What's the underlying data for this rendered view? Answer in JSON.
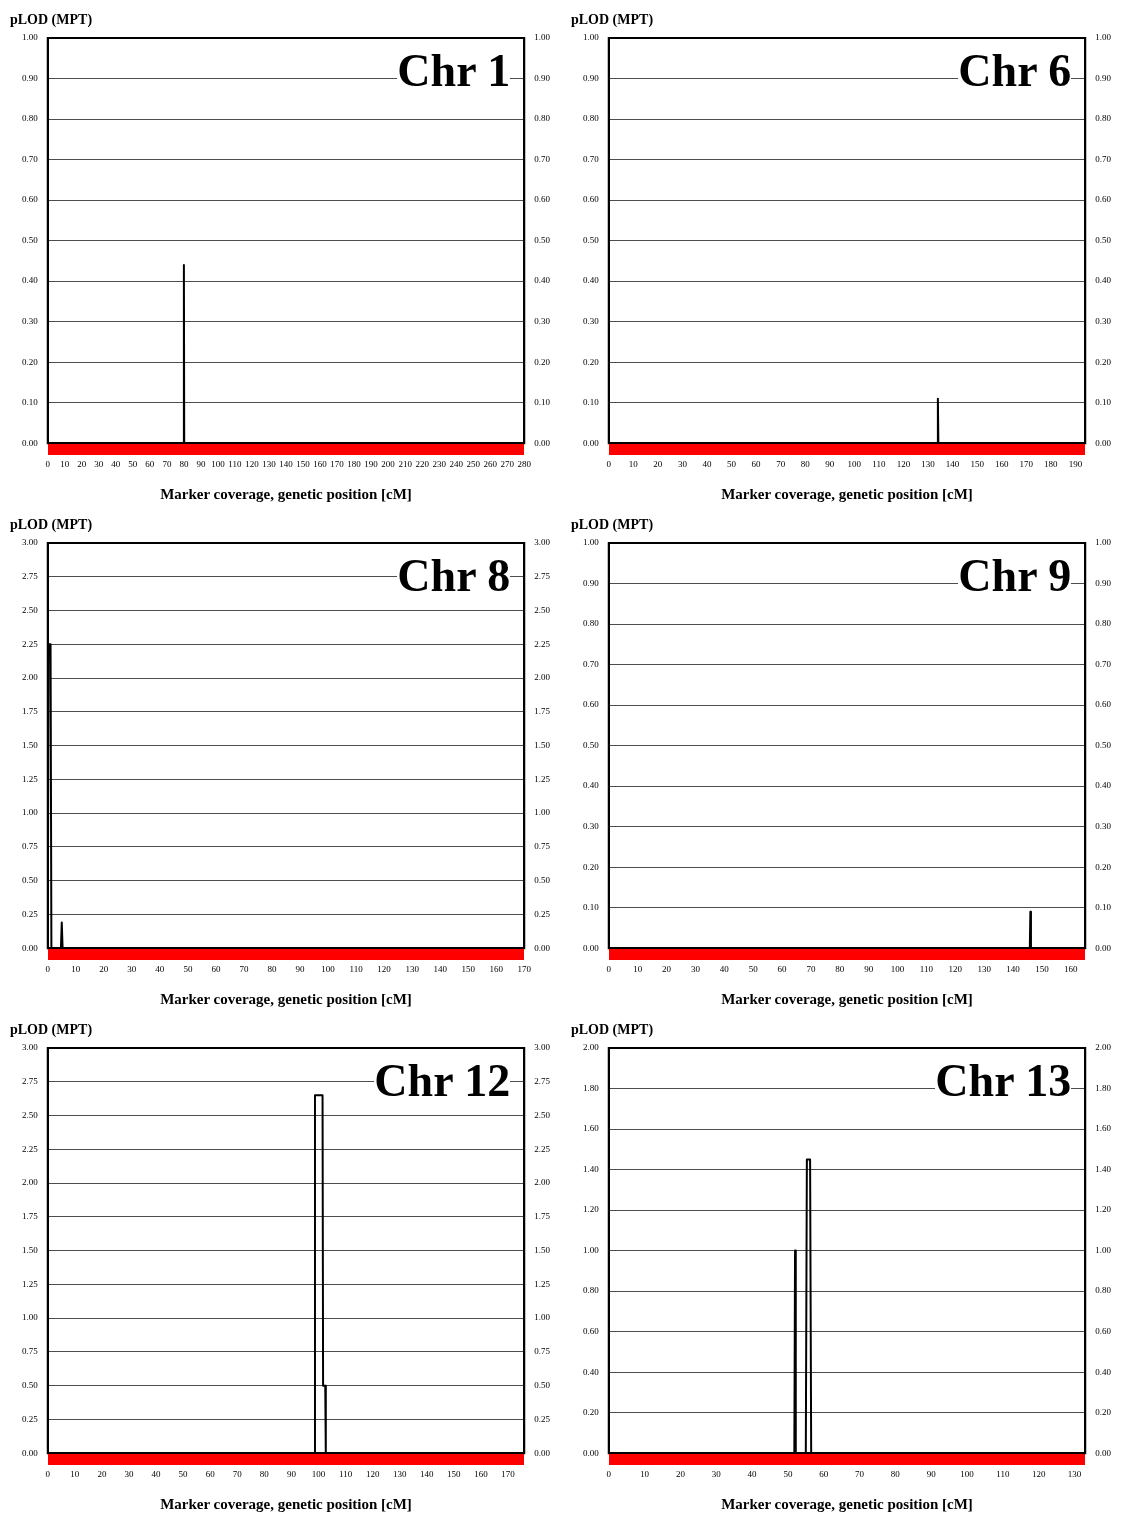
{
  "chart_data": [
    {
      "type": "line",
      "annotations": [
        "Chr 1"
      ],
      "ylabel": "pLOD (MPT)",
      "xlabel": "Marker coverage, genetic position [cM]",
      "grid": "y",
      "marker": "none",
      "x": [
        0,
        79.8,
        80,
        80.2,
        280
      ],
      "series": [
        {
          "color": "#000000",
          "values": [
            0,
            0,
            0.44,
            0,
            0
          ]
        }
      ],
      "xlim": [
        0,
        280
      ],
      "xticks": [
        0,
        10,
        20,
        30,
        40,
        50,
        60,
        70,
        80,
        90,
        100,
        110,
        120,
        130,
        140,
        150,
        160,
        170,
        180,
        190,
        200,
        210,
        220,
        230,
        240,
        250,
        260,
        270,
        280
      ],
      "ylim": [
        0,
        1
      ],
      "yticks": [
        {
          "value": 0,
          "label": "0.00"
        },
        {
          "value": 0.1,
          "label": "0.10"
        },
        {
          "value": 0.2,
          "label": "0.20"
        },
        {
          "value": 0.3,
          "label": "0.30"
        },
        {
          "value": 0.4,
          "label": "0.40"
        },
        {
          "value": 0.5,
          "label": "0.50"
        },
        {
          "value": 0.6,
          "label": "0.60"
        },
        {
          "value": 0.7,
          "label": "0.70"
        },
        {
          "value": 0.8,
          "label": "0.80"
        },
        {
          "value": 0.9,
          "label": "0.90"
        },
        {
          "value": 1,
          "label": "1.00"
        }
      ],
      "y2lim": [
        0,
        1
      ],
      "y2ticks": [
        {
          "value": 0,
          "label": "0.00"
        },
        {
          "value": 0.1,
          "label": "0.10"
        },
        {
          "value": 0.2,
          "label": "0.20"
        },
        {
          "value": 0.3,
          "label": "0.30"
        },
        {
          "value": 0.4,
          "label": "0.40"
        },
        {
          "value": 0.5,
          "label": "0.50"
        },
        {
          "value": 0.6,
          "label": "0.60"
        },
        {
          "value": 0.7,
          "label": "0.70"
        },
        {
          "value": 0.8,
          "label": "0.80"
        },
        {
          "value": 0.9,
          "label": "0.90"
        },
        {
          "value": 1,
          "label": "1.00"
        }
      ]
    },
    {
      "type": "line",
      "annotations": [
        "Chr 6"
      ],
      "ylabel": "pLOD (MPT)",
      "xlabel": "Marker coverage, genetic position [cM]",
      "grid": "y",
      "marker": "none",
      "x": [
        0,
        133.8,
        134,
        134.2,
        194
      ],
      "series": [
        {
          "color": "#000000",
          "values": [
            0,
            0,
            0.11,
            0,
            0
          ]
        }
      ],
      "xlim": [
        0,
        194
      ],
      "xticks": [
        0,
        10,
        20,
        30,
        40,
        50,
        60,
        70,
        80,
        90,
        100,
        110,
        120,
        130,
        140,
        150,
        160,
        170,
        180,
        190
      ],
      "ylim": [
        0,
        1
      ],
      "yticks": [
        {
          "value": 0,
          "label": "0.00"
        },
        {
          "value": 0.1,
          "label": "0.10"
        },
        {
          "value": 0.2,
          "label": "0.20"
        },
        {
          "value": 0.3,
          "label": "0.30"
        },
        {
          "value": 0.4,
          "label": "0.40"
        },
        {
          "value": 0.5,
          "label": "0.50"
        },
        {
          "value": 0.6,
          "label": "0.60"
        },
        {
          "value": 0.7,
          "label": "0.70"
        },
        {
          "value": 0.8,
          "label": "0.80"
        },
        {
          "value": 0.9,
          "label": "0.90"
        },
        {
          "value": 1,
          "label": "1.00"
        }
      ],
      "y2lim": [
        0,
        1
      ],
      "y2ticks": [
        {
          "value": 0,
          "label": "0.00"
        },
        {
          "value": 0.1,
          "label": "0.10"
        },
        {
          "value": 0.2,
          "label": "0.20"
        },
        {
          "value": 0.3,
          "label": "0.30"
        },
        {
          "value": 0.4,
          "label": "0.40"
        },
        {
          "value": 0.5,
          "label": "0.50"
        },
        {
          "value": 0.6,
          "label": "0.60"
        },
        {
          "value": 0.7,
          "label": "0.70"
        },
        {
          "value": 0.8,
          "label": "0.80"
        },
        {
          "value": 0.9,
          "label": "0.90"
        },
        {
          "value": 1,
          "label": "1.00"
        }
      ]
    },
    {
      "type": "line",
      "annotations": [
        "Chr 8"
      ],
      "ylabel": "pLOD (MPT)",
      "xlabel": "Marker coverage, genetic position [cM]",
      "grid": "y",
      "marker": "none",
      "x": [
        0,
        0.3,
        1,
        1.3,
        4.7,
        5,
        5.3,
        170
      ],
      "series": [
        {
          "color": "#000000",
          "values": [
            0,
            2.25,
            2.25,
            0,
            0,
            0.19,
            0,
            0
          ]
        }
      ],
      "xlim": [
        0,
        170
      ],
      "xticks": [
        0,
        10,
        20,
        30,
        40,
        50,
        60,
        70,
        80,
        90,
        100,
        110,
        120,
        130,
        140,
        150,
        160,
        170
      ],
      "ylim": [
        0,
        3
      ],
      "yticks": [
        {
          "value": 0,
          "label": "0.00"
        },
        {
          "value": 0.25,
          "label": "0.25"
        },
        {
          "value": 0.5,
          "label": "0.50"
        },
        {
          "value": 0.75,
          "label": "0.75"
        },
        {
          "value": 1,
          "label": "1.00"
        },
        {
          "value": 1.25,
          "label": "1.25"
        },
        {
          "value": 1.5,
          "label": "1.50"
        },
        {
          "value": 1.75,
          "label": "1.75"
        },
        {
          "value": 2,
          "label": "2.00"
        },
        {
          "value": 2.25,
          "label": "2.25"
        },
        {
          "value": 2.5,
          "label": "2.50"
        },
        {
          "value": 2.75,
          "label": "2.75"
        },
        {
          "value": 3,
          "label": "3.00"
        }
      ],
      "y2lim": [
        0,
        3
      ],
      "y2ticks": [
        {
          "value": 0,
          "label": "0.00"
        },
        {
          "value": 0.25,
          "label": "0.25"
        },
        {
          "value": 0.5,
          "label": "0.50"
        },
        {
          "value": 0.75,
          "label": "0.75"
        },
        {
          "value": 1,
          "label": "1.00"
        },
        {
          "value": 1.25,
          "label": "1.25"
        },
        {
          "value": 1.5,
          "label": "1.50"
        },
        {
          "value": 1.75,
          "label": "1.75"
        },
        {
          "value": 2,
          "label": "2.00"
        },
        {
          "value": 2.25,
          "label": "2.25"
        },
        {
          "value": 2.5,
          "label": "2.50"
        },
        {
          "value": 2.75,
          "label": "2.75"
        },
        {
          "value": 3,
          "label": "3.00"
        }
      ]
    },
    {
      "type": "line",
      "annotations": [
        "Chr 9"
      ],
      "ylabel": "pLOD (MPT)",
      "xlabel": "Marker coverage, genetic position [cM]",
      "grid": "y",
      "marker": "none",
      "x": [
        145.8,
        146,
        146.2
      ],
      "series": [
        {
          "color": "#000000",
          "values": [
            0,
            0.09,
            0
          ]
        }
      ],
      "xlim": [
        0,
        165
      ],
      "xticks": [
        0,
        10,
        20,
        30,
        40,
        50,
        60,
        70,
        80,
        90,
        100,
        110,
        120,
        130,
        140,
        150,
        160
      ],
      "ylim": [
        0,
        1
      ],
      "yticks": [
        {
          "value": 0,
          "label": "0.00"
        },
        {
          "value": 0.1,
          "label": "0.10"
        },
        {
          "value": 0.2,
          "label": "0.20"
        },
        {
          "value": 0.3,
          "label": "0.30"
        },
        {
          "value": 0.4,
          "label": "0.40"
        },
        {
          "value": 0.5,
          "label": "0.50"
        },
        {
          "value": 0.6,
          "label": "0.60"
        },
        {
          "value": 0.7,
          "label": "0.70"
        },
        {
          "value": 0.8,
          "label": "0.80"
        },
        {
          "value": 0.9,
          "label": "0.90"
        },
        {
          "value": 1,
          "label": "1.00"
        }
      ],
      "y2lim": [
        0,
        1
      ],
      "y2ticks": [
        {
          "value": 0,
          "label": "0.00"
        },
        {
          "value": 0.1,
          "label": "0.10"
        },
        {
          "value": 0.2,
          "label": "0.20"
        },
        {
          "value": 0.3,
          "label": "0.30"
        },
        {
          "value": 0.4,
          "label": "0.40"
        },
        {
          "value": 0.5,
          "label": "0.50"
        },
        {
          "value": 0.6,
          "label": "0.60"
        },
        {
          "value": 0.7,
          "label": "0.70"
        },
        {
          "value": 0.8,
          "label": "0.80"
        },
        {
          "value": 0.9,
          "label": "0.90"
        },
        {
          "value": 1,
          "label": "1.00"
        }
      ]
    },
    {
      "type": "line",
      "annotations": [
        "Chr 12"
      ],
      "ylabel": "pLOD (MPT)",
      "xlabel": "Marker coverage, genetic position [cM]",
      "grid": "y",
      "marker": "none",
      "x": [
        0,
        98.5,
        98.7,
        101.5,
        101.7,
        102.5,
        102.7,
        176
      ],
      "series": [
        {
          "color": "#000000",
          "values": [
            0,
            0,
            2.65,
            2.65,
            0.5,
            0.5,
            0,
            0
          ]
        }
      ],
      "xlim": [
        0,
        176
      ],
      "xticks": [
        0,
        10,
        20,
        30,
        40,
        50,
        60,
        70,
        80,
        90,
        100,
        110,
        120,
        130,
        140,
        150,
        160,
        170
      ],
      "ylim": [
        0,
        3
      ],
      "yticks": [
        {
          "value": 0,
          "label": "0.00"
        },
        {
          "value": 0.25,
          "label": "0.25"
        },
        {
          "value": 0.5,
          "label": "0.50"
        },
        {
          "value": 0.75,
          "label": "0.75"
        },
        {
          "value": 1,
          "label": "1.00"
        },
        {
          "value": 1.25,
          "label": "1.25"
        },
        {
          "value": 1.5,
          "label": "1.50"
        },
        {
          "value": 1.75,
          "label": "1.75"
        },
        {
          "value": 2,
          "label": "2.00"
        },
        {
          "value": 2.25,
          "label": "2.25"
        },
        {
          "value": 2.5,
          "label": "2.50"
        },
        {
          "value": 2.75,
          "label": "2.75"
        },
        {
          "value": 3,
          "label": "3.00"
        }
      ],
      "y2lim": [
        0,
        3
      ],
      "y2ticks": [
        {
          "value": 0,
          "label": "0.00"
        },
        {
          "value": 0.25,
          "label": "0.25"
        },
        {
          "value": 0.5,
          "label": "0.50"
        },
        {
          "value": 0.75,
          "label": "0.75"
        },
        {
          "value": 1,
          "label": "1.00"
        },
        {
          "value": 1.25,
          "label": "1.25"
        },
        {
          "value": 1.5,
          "label": "1.50"
        },
        {
          "value": 1.75,
          "label": "1.75"
        },
        {
          "value": 2,
          "label": "2.00"
        },
        {
          "value": 2.25,
          "label": "2.25"
        },
        {
          "value": 2.5,
          "label": "2.50"
        },
        {
          "value": 2.75,
          "label": "2.75"
        },
        {
          "value": 3,
          "label": "3.00"
        }
      ]
    },
    {
      "type": "line",
      "annotations": [
        "Chr 13"
      ],
      "ylabel": "pLOD (MPT)",
      "xlabel": "Marker coverage, genetic position [cM]",
      "grid": "y",
      "marker": "none",
      "x": [
        0,
        51.8,
        52,
        52.2,
        55,
        55.3,
        56.2,
        56.5,
        133
      ],
      "series": [
        {
          "color": "#000000",
          "values": [
            0,
            0,
            1,
            0,
            0,
            1.45,
            1.45,
            0,
            0
          ]
        }
      ],
      "xlim": [
        0,
        133
      ],
      "xticks": [
        0,
        10,
        20,
        30,
        40,
        50,
        60,
        70,
        80,
        90,
        100,
        110,
        120,
        130
      ],
      "ylim": [
        0,
        2
      ],
      "yticks": [
        {
          "value": 0,
          "label": "0.00"
        },
        {
          "value": 0.2,
          "label": "0.20"
        },
        {
          "value": 0.4,
          "label": "0.40"
        },
        {
          "value": 0.6,
          "label": "0.60"
        },
        {
          "value": 0.8,
          "label": "0.80"
        },
        {
          "value": 1,
          "label": "1.00"
        },
        {
          "value": 1.2,
          "label": "1.20"
        },
        {
          "value": 1.4,
          "label": "1.40"
        },
        {
          "value": 1.6,
          "label": "1.60"
        },
        {
          "value": 1.8,
          "label": "1.80"
        },
        {
          "value": 2,
          "label": "2.00"
        }
      ],
      "y2lim": [
        0,
        2
      ],
      "y2ticks": [
        {
          "value": 0,
          "label": "0.00"
        },
        {
          "value": 0.2,
          "label": "0.20"
        },
        {
          "value": 0.4,
          "label": "0.40"
        },
        {
          "value": 0.6,
          "label": "0.60"
        },
        {
          "value": 0.8,
          "label": "0.80"
        },
        {
          "value": 1,
          "label": "1.00"
        },
        {
          "value": 1.2,
          "label": "1.20"
        },
        {
          "value": 1.4,
          "label": "1.40"
        },
        {
          "value": 1.6,
          "label": "1.60"
        },
        {
          "value": 1.8,
          "label": "1.80"
        },
        {
          "value": 2,
          "label": "2.00"
        }
      ]
    }
  ]
}
